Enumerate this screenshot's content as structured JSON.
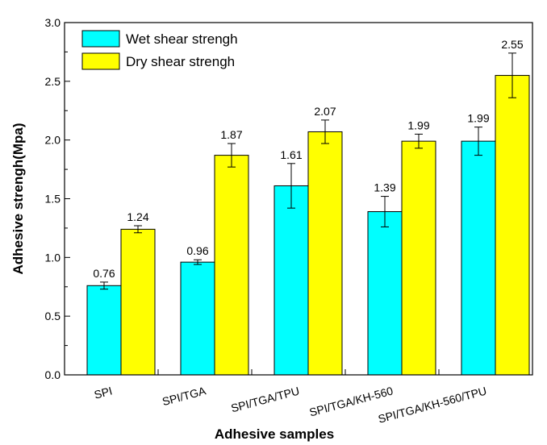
{
  "chart_data": {
    "type": "bar",
    "categories": [
      "SPI",
      "SPI/TGA",
      "SPI/TGA/TPU",
      "SPI/TGA/KH-560",
      "SPI/TGA/KH-560/TPU"
    ],
    "series": [
      {
        "name": "Wet shear strengh",
        "values": [
          0.76,
          0.96,
          1.61,
          1.39,
          1.99
        ],
        "errors": [
          0.03,
          0.02,
          0.19,
          0.13,
          0.12
        ],
        "labels": [
          "0.76",
          "0.96",
          "1.61",
          "1.39",
          "1.99"
        ],
        "color": "#00FFFF"
      },
      {
        "name": "Dry shear strengh",
        "values": [
          1.24,
          1.87,
          2.07,
          1.99,
          2.55
        ],
        "errors": [
          0.03,
          0.1,
          0.1,
          0.06,
          0.19
        ],
        "labels": [
          "1.24",
          "1.87",
          "2.07",
          "1.99",
          "2.55"
        ],
        "color": "#FFFF00"
      }
    ],
    "xlabel": "Adhesive samples",
    "ylabel": "Adhesive strengh(Mpa)",
    "ylim": [
      0,
      3.0
    ],
    "yticks": [
      "0.0",
      "0.5",
      "1.0",
      "1.5",
      "2.0",
      "2.5",
      "3.0"
    ],
    "legend_position": "top-left",
    "grid": false
  }
}
